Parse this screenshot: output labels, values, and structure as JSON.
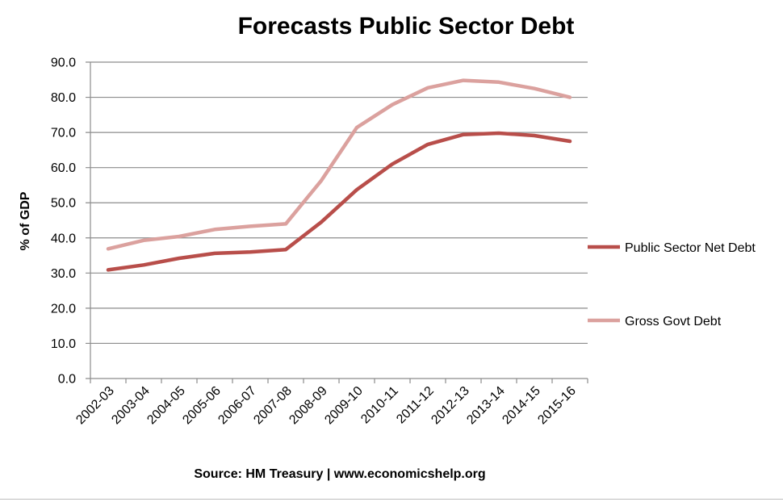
{
  "chart_data": {
    "type": "line",
    "title": "Forecasts Public Sector Debt",
    "ylabel": "% of GDP",
    "xlabel": "",
    "source": "Source: HM Treasury | www.economicshelp.org",
    "ylim": [
      0,
      90
    ],
    "ytick_step": 10,
    "ytick_labels": [
      "0.0",
      "10.0",
      "20.0",
      "30.0",
      "40.0",
      "50.0",
      "60.0",
      "70.0",
      "80.0",
      "90.0"
    ],
    "grid": true,
    "legend_position": "right",
    "categories": [
      "2002-03",
      "2003-04",
      "2004-05",
      "2005-06",
      "2006-07",
      "2007-08",
      "2008-09",
      "2009-10",
      "2010-11",
      "2011-12",
      "2012-13",
      "2013-14",
      "2014-15",
      "2015-16"
    ],
    "series": [
      {
        "name": "Public Sector Net Debt",
        "color": "#b84e4a",
        "values": [
          30.9,
          32.3,
          34.2,
          35.6,
          36.0,
          36.7,
          44.5,
          53.7,
          61.0,
          66.6,
          69.4,
          69.8,
          69.1,
          67.5
        ]
      },
      {
        "name": "Gross Govt Debt",
        "color": "#dba19e",
        "values": [
          36.9,
          39.3,
          40.4,
          42.4,
          43.3,
          44.0,
          56.3,
          71.4,
          77.9,
          82.7,
          84.8,
          84.3,
          82.5,
          80.0
        ]
      }
    ]
  }
}
